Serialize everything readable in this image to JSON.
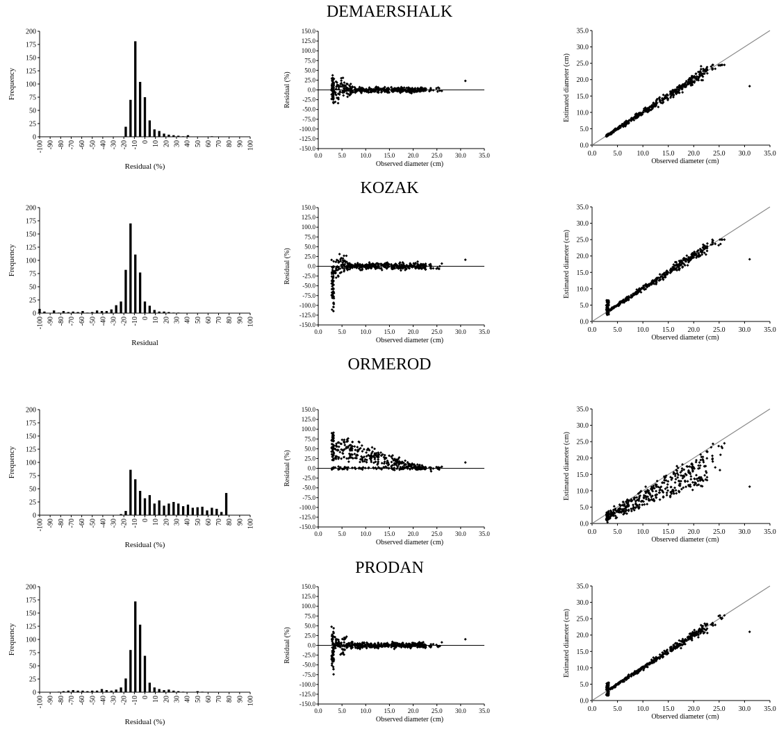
{
  "sections": [
    {
      "title": "DEMAERSHALK",
      "hist_xlabel": "Residual  (%)",
      "hist": [
        0,
        0,
        0,
        0,
        0,
        0,
        0,
        0,
        0,
        0,
        0,
        0,
        0,
        0,
        0,
        0,
        0,
        0,
        19,
        70,
        181,
        104,
        75,
        31,
        14,
        11,
        6,
        4,
        3,
        2,
        1,
        3,
        0,
        0,
        0,
        0,
        1,
        0,
        0,
        0,
        0,
        0,
        0,
        0,
        0
      ]
    },
    {
      "title": "KOZAK",
      "hist_xlabel": "Residual",
      "hist": [
        8,
        3,
        0,
        5,
        1,
        4,
        2,
        3,
        2,
        4,
        1,
        2,
        5,
        4,
        4,
        7,
        15,
        22,
        82,
        170,
        111,
        77,
        22,
        14,
        6,
        3,
        3,
        2,
        1,
        1,
        0,
        0,
        0,
        0,
        0,
        0,
        0,
        0,
        0,
        0,
        0,
        0,
        0,
        0,
        0
      ]
    },
    {
      "title": "ORMEROD",
      "hist_xlabel": "Residual  (%)",
      "hist": [
        0,
        0,
        0,
        0,
        0,
        0,
        0,
        0,
        0,
        0,
        0,
        0,
        0,
        0,
        0,
        0,
        0,
        2,
        8,
        86,
        68,
        46,
        32,
        38,
        22,
        28,
        18,
        22,
        25,
        22,
        17,
        20,
        14,
        15,
        16,
        9,
        14,
        12,
        6,
        42,
        0,
        0,
        0,
        0,
        0
      ]
    },
    {
      "title": "PRODAN",
      "hist_xlabel": "Residual  (%)",
      "hist": [
        0,
        0,
        0,
        0,
        1,
        2,
        3,
        4,
        3,
        3,
        2,
        3,
        3,
        6,
        4,
        3,
        5,
        9,
        26,
        80,
        172,
        128,
        69,
        18,
        9,
        6,
        4,
        5,
        3,
        2,
        1,
        0,
        0,
        2,
        1,
        0,
        0,
        0,
        0,
        0,
        0,
        0,
        0,
        0,
        0
      ]
    }
  ],
  "chart_data": [
    {
      "type": "bar",
      "chart": "residual-histogram",
      "xlabel": "Residual (%)",
      "ylabel": "Frequency",
      "categories": [
        "-100",
        "-90",
        "-80",
        "-70",
        "-60",
        "-50",
        "-40",
        "-30",
        "-20",
        "-10",
        "0",
        "10",
        "20",
        "30",
        "40",
        "50",
        "60",
        "70",
        "80",
        "90",
        "100"
      ],
      "ylim": [
        0,
        200
      ],
      "yticks": [
        0,
        25,
        50,
        75,
        100,
        125,
        150,
        175,
        200
      ]
    },
    {
      "type": "scatter",
      "chart": "residual-vs-observed",
      "xlabel": "Observed diameter  (cm)",
      "ylabel": "Residual  (%)",
      "xlim": [
        0,
        35
      ],
      "ylim": [
        -150,
        150
      ],
      "xticks": [
        0,
        5,
        10,
        15,
        20,
        25,
        30,
        35
      ],
      "yticks": [
        150,
        125,
        100,
        75,
        50,
        25,
        0,
        -25,
        -50,
        -75,
        -100,
        -125,
        -150
      ]
    },
    {
      "type": "scatter",
      "chart": "estimated-vs-observed",
      "xlabel": "Observed diameter  (cm)",
      "ylabel": "Estimated  diameter  (cm)",
      "xlim": [
        0,
        35
      ],
      "ylim": [
        0,
        35
      ],
      "xticks": [
        0,
        5,
        10,
        15,
        20,
        25,
        30,
        35
      ],
      "yticks": [
        0,
        5,
        10,
        15,
        20,
        25,
        30,
        35
      ],
      "reference_line": "y = x"
    }
  ],
  "labels": {
    "hist_ylabel": "Frequency",
    "hist_ticks": [
      "-100",
      "-90",
      "-80",
      "-70",
      "-60",
      "-50",
      "-40",
      "-30",
      "-20",
      "-10",
      "0",
      "10",
      "20",
      "30",
      "40",
      "50",
      "60",
      "70",
      "80",
      "90",
      "100"
    ],
    "hist_yticks": [
      "0",
      "25",
      "50",
      "75",
      "100",
      "125",
      "150",
      "175",
      "200"
    ],
    "res_ylabel": "Residual  (%)",
    "res_ylabel_top": "Residual  (%)",
    "res_yticks": [
      "150.0",
      "125.0",
      "100.0",
      "75.0",
      "50.0",
      "25.0",
      "0.0",
      "-25.0",
      "-50.0",
      "-75.0",
      "-100.0",
      "-125.0",
      "-150.0"
    ],
    "xticks_cm": [
      "0.0",
      "5.0",
      "10.0",
      "15.0",
      "20.0",
      "25.0",
      "30.0",
      "35.0"
    ],
    "obs_xlabel": "Observed diameter  (cm)",
    "est_ylabel": "Estimated  diameter  (cm)",
    "est_yticks": [
      "0.0",
      "5.0",
      "10.0",
      "15.0",
      "20.0",
      "25.0",
      "30.0",
      "35.0"
    ]
  },
  "colors": {
    "bars": "#000000",
    "points": "#000000",
    "reference": "#888888"
  }
}
